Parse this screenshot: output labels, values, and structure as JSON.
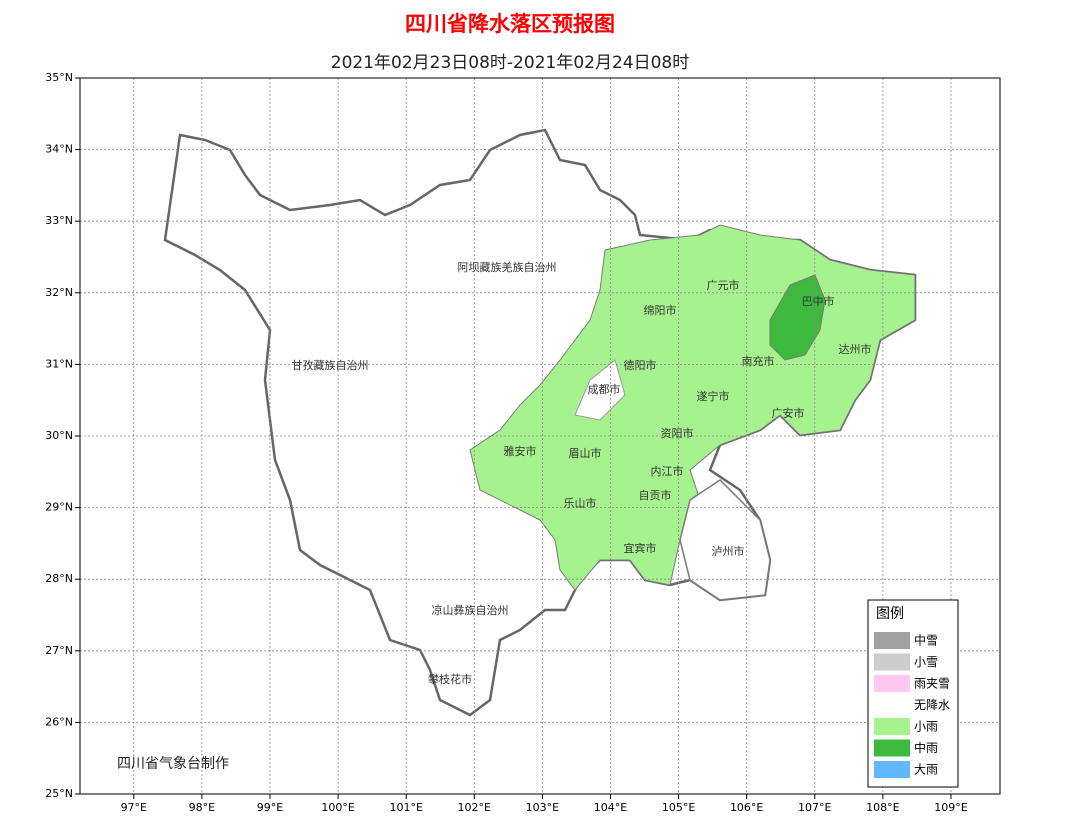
{
  "map": {
    "title": "四川省降水落区预报图",
    "subtitle": "2021年02月23日08时-2021年02月24日08时",
    "credit": "四川省气象台制作",
    "xlim": [
      96.21,
      109.72
    ],
    "ylim": [
      25,
      35
    ],
    "xticks": [
      {
        "value": 97,
        "label": "97°E"
      },
      {
        "value": 98,
        "label": "98°E"
      },
      {
        "value": 99,
        "label": "99°E"
      },
      {
        "value": 100,
        "label": "100°E"
      },
      {
        "value": 101,
        "label": "101°E"
      },
      {
        "value": 102,
        "label": "102°E"
      },
      {
        "value": 103,
        "label": "103°E"
      },
      {
        "value": 104,
        "label": "104°E"
      },
      {
        "value": 105,
        "label": "105°E"
      },
      {
        "value": 106,
        "label": "106°E"
      },
      {
        "value": 107,
        "label": "107°E"
      },
      {
        "value": 108,
        "label": "108°E"
      },
      {
        "value": 109,
        "label": "109°E"
      }
    ],
    "yticks": [
      {
        "value": 25,
        "label": "25°N"
      },
      {
        "value": 26,
        "label": "26°N"
      },
      {
        "value": 27,
        "label": "27°N"
      },
      {
        "value": 28,
        "label": "28°N"
      },
      {
        "value": 29,
        "label": "29°N"
      },
      {
        "value": 30,
        "label": "30°N"
      },
      {
        "value": 31,
        "label": "31°N"
      },
      {
        "value": 32,
        "label": "32°N"
      },
      {
        "value": 33,
        "label": "33°N"
      },
      {
        "value": 34,
        "label": "34°N"
      },
      {
        "value": 35,
        "label": "35°N"
      }
    ],
    "grid": true,
    "regions": [
      "阿坝藏族羌族自治州",
      "甘孜藏族自治州",
      "广元市",
      "巴中市",
      "绵阳市",
      "德阳市",
      "南充市",
      "达州市",
      "成都市",
      "遂宁市",
      "广安市",
      "资阳市",
      "雅安市",
      "眉山市",
      "内江市",
      "乐山市",
      "自贡市",
      "宜宾市",
      "泸州市",
      "凉山彝族自治州",
      "攀枝花市"
    ],
    "legend_title": "图例",
    "legend": [
      {
        "label": "中雪",
        "color": "#a0a0a0"
      },
      {
        "label": "小雪",
        "color": "#cdcdcd"
      },
      {
        "label": "雨夹雪",
        "color": "#ffc8f0"
      },
      {
        "label": "无降水",
        "color": "#ffffff"
      },
      {
        "label": "小雨",
        "color": "#a6f28f"
      },
      {
        "label": "中雨",
        "color": "#3dba3d"
      },
      {
        "label": "大雨",
        "color": "#61b8ff"
      }
    ]
  }
}
